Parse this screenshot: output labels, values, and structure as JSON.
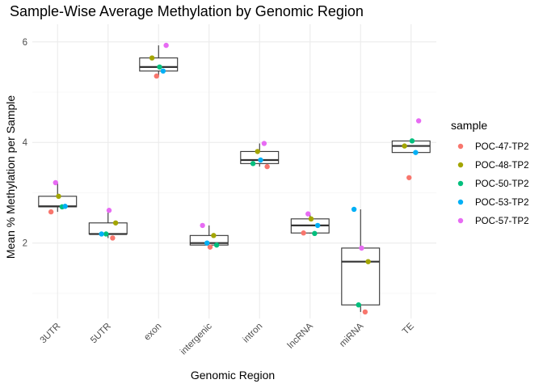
{
  "chart_data": {
    "type": "box",
    "title": "Sample-Wise Average Methylation by Genomic Region",
    "xlabel": "Genomic Region",
    "ylabel": "Mean % Methylation per Sample",
    "ylim": [
      0.5,
      6.35
    ],
    "yticks": [
      2,
      4,
      6
    ],
    "grid": true,
    "legend": {
      "title": "sample",
      "position": "right"
    },
    "categories": [
      "3UTR",
      "5UTR",
      "exon",
      "intergenic",
      "intron",
      "lncRNA",
      "miRNA",
      "TE"
    ],
    "series": [
      {
        "name": "POC-47-TP2",
        "color": "#F8766D",
        "values": [
          2.62,
          2.1,
          5.32,
          1.92,
          3.52,
          2.2,
          0.63,
          3.3
        ]
      },
      {
        "name": "POC-48-TP2",
        "color": "#A3A500",
        "values": [
          2.93,
          2.4,
          5.68,
          2.15,
          3.82,
          2.48,
          1.63,
          3.93
        ]
      },
      {
        "name": "POC-50-TP2",
        "color": "#00BF7D",
        "values": [
          2.72,
          2.18,
          5.5,
          1.96,
          3.58,
          2.19,
          0.77,
          4.03
        ]
      },
      {
        "name": "POC-53-TP2",
        "color": "#00B0F6",
        "values": [
          2.73,
          2.18,
          5.42,
          2.0,
          3.65,
          2.35,
          2.67,
          3.8
        ]
      },
      {
        "name": "POC-57-TP2",
        "color": "#E76BF3",
        "values": [
          3.2,
          2.65,
          5.93,
          2.35,
          3.98,
          2.58,
          1.9,
          4.43
        ]
      }
    ]
  }
}
